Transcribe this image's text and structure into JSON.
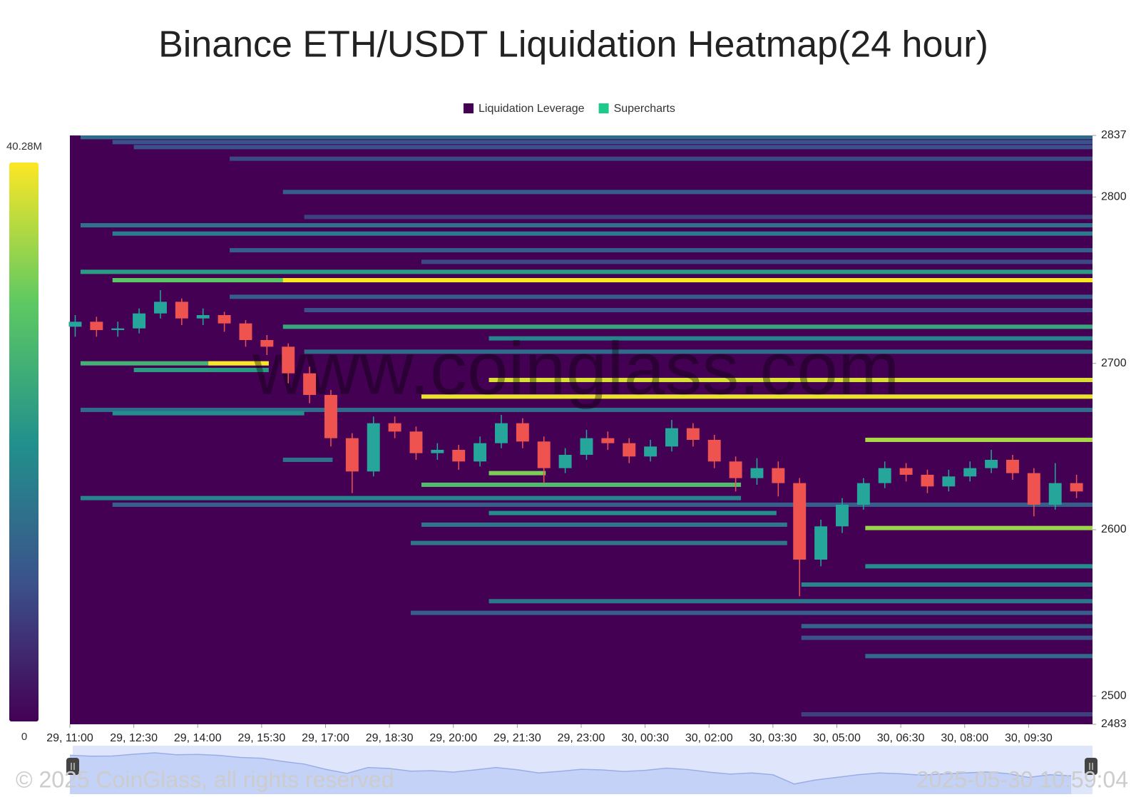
{
  "chart_data": {
    "type": "heatmap",
    "title": "Binance ETH/USDT Liquidation Heatmap(24 hour)",
    "legend": [
      {
        "name": "Liquidation Leverage",
        "color": "#440154"
      },
      {
        "name": "Supercharts",
        "color": "#1ec98c"
      }
    ],
    "watermark": "www.coinglass.com",
    "copyright": "© 2025 CoinGlass, all rights reserved",
    "timestamp": "2025-05-30 10:59:04",
    "colormap": "viridis",
    "colorbar": {
      "min": 0,
      "max": {
        "value": 40280000,
        "label": "40.28M"
      }
    },
    "ylim": [
      2483,
      2837
    ],
    "yticks": [
      2483,
      2500,
      2600,
      2700,
      2800,
      2837
    ],
    "xlim": [
      "29, 11:00",
      "30, 11:00"
    ],
    "xticks": [
      "29, 11:00",
      "29, 12:30",
      "29, 14:00",
      "29, 15:30",
      "29, 17:00",
      "29, 18:30",
      "29, 20:00",
      "29, 21:30",
      "29, 23:00",
      "30, 00:30",
      "30, 02:00",
      "30, 03:30",
      "30, 05:00",
      "30, 06:30",
      "30, 08:00",
      "30, 09:30"
    ],
    "bands": [
      {
        "price": 2836,
        "start": "29, 11:15",
        "end": "30, 11:00",
        "value": 14000000
      },
      {
        "price": 2833,
        "start": "29, 12:00",
        "end": "30, 11:00",
        "value": 10000000
      },
      {
        "price": 2830,
        "start": "29, 12:30",
        "end": "30, 11:00",
        "value": 10000000
      },
      {
        "price": 2823,
        "start": "29, 14:45",
        "end": "30, 11:00",
        "value": 9000000
      },
      {
        "price": 2803,
        "start": "29, 16:00",
        "end": "30, 11:00",
        "value": 12000000
      },
      {
        "price": 2788,
        "start": "29, 16:30",
        "end": "30, 11:00",
        "value": 8000000
      },
      {
        "price": 2783,
        "start": "29, 11:15",
        "end": "30, 11:00",
        "value": 15000000
      },
      {
        "price": 2778,
        "start": "29, 12:00",
        "end": "30, 11:00",
        "value": 17000000
      },
      {
        "price": 2768,
        "start": "29, 14:45",
        "end": "30, 11:00",
        "value": 12000000
      },
      {
        "price": 2761,
        "start": "29, 19:15",
        "end": "30, 11:00",
        "value": 9000000
      },
      {
        "price": 2755,
        "start": "29, 11:15",
        "end": "30, 11:00",
        "value": 22000000
      },
      {
        "price": 2750,
        "start": "29, 12:00",
        "end": "30, 11:00",
        "value": 30000000
      },
      {
        "price": 2750,
        "start": "29, 16:00",
        "end": "30, 11:00",
        "value": 40000000
      },
      {
        "price": 2740,
        "start": "29, 14:45",
        "end": "30, 11:00",
        "value": 12000000
      },
      {
        "price": 2732,
        "start": "29, 16:30",
        "end": "30, 11:00",
        "value": 10000000
      },
      {
        "price": 2722,
        "start": "29, 16:00",
        "end": "30, 11:00",
        "value": 24000000
      },
      {
        "price": 2715,
        "start": "29, 20:50",
        "end": "30, 11:00",
        "value": 18000000
      },
      {
        "price": 2707,
        "start": "29, 16:30",
        "end": "30, 11:00",
        "value": 14000000
      },
      {
        "price": 2700,
        "start": "29, 11:15",
        "end": "29, 15:40",
        "value": 26000000
      },
      {
        "price": 2700,
        "start": "29, 14:15",
        "end": "29, 15:40",
        "value": 40000000
      },
      {
        "price": 2696,
        "start": "29, 12:30",
        "end": "29, 15:40",
        "value": 22000000
      },
      {
        "price": 2690,
        "start": "29, 20:50",
        "end": "30, 11:00",
        "value": 38000000
      },
      {
        "price": 2680,
        "start": "29, 19:15",
        "end": "30, 11:00",
        "value": 39000000
      },
      {
        "price": 2672,
        "start": "29, 11:15",
        "end": "30, 11:00",
        "value": 14000000
      },
      {
        "price": 2670,
        "start": "29, 12:00",
        "end": "29, 16:30",
        "value": 20000000
      },
      {
        "price": 2654,
        "start": "30, 05:40",
        "end": "30, 11:00",
        "value": 35000000
      },
      {
        "price": 2642,
        "start": "29, 16:00",
        "end": "29, 17:10",
        "value": 15000000
      },
      {
        "price": 2634,
        "start": "29, 20:50",
        "end": "29, 22:10",
        "value": 32000000
      },
      {
        "price": 2627,
        "start": "29, 19:15",
        "end": "30, 02:45",
        "value": 28000000
      },
      {
        "price": 2619,
        "start": "29, 11:15",
        "end": "30, 02:45",
        "value": 18000000
      },
      {
        "price": 2615,
        "start": "29, 12:00",
        "end": "30, 11:00",
        "value": 12000000
      },
      {
        "price": 2610,
        "start": "29, 20:50",
        "end": "30, 03:35",
        "value": 20000000
      },
      {
        "price": 2603,
        "start": "29, 19:15",
        "end": "30, 03:50",
        "value": 16000000
      },
      {
        "price": 2601,
        "start": "30, 05:40",
        "end": "30, 11:00",
        "value": 34000000
      },
      {
        "price": 2592,
        "start": "29, 19:00",
        "end": "30, 03:50",
        "value": 16000000
      },
      {
        "price": 2578,
        "start": "30, 05:40",
        "end": "30, 11:00",
        "value": 20000000
      },
      {
        "price": 2567,
        "start": "30, 04:10",
        "end": "30, 11:00",
        "value": 18000000
      },
      {
        "price": 2557,
        "start": "29, 20:50",
        "end": "30, 11:00",
        "value": 16000000
      },
      {
        "price": 2550,
        "start": "29, 19:00",
        "end": "30, 11:00",
        "value": 12000000
      },
      {
        "price": 2542,
        "start": "30, 04:10",
        "end": "30, 11:00",
        "value": 13000000
      },
      {
        "price": 2535,
        "start": "30, 04:10",
        "end": "30, 11:00",
        "value": 10000000
      },
      {
        "price": 2524,
        "start": "30, 05:40",
        "end": "30, 11:00",
        "value": 14000000
      },
      {
        "price": 2489,
        "start": "30, 04:10",
        "end": "30, 11:00",
        "value": 8000000
      }
    ],
    "candles": {
      "up_color": "#26a69a",
      "down_color": "#ef5350",
      "x": [
        "29, 11:00",
        "29, 11:30",
        "29, 12:00",
        "29, 12:30",
        "29, 13:00",
        "29, 13:30",
        "29, 14:00",
        "29, 14:30",
        "29, 15:00",
        "29, 15:30",
        "29, 16:00",
        "29, 16:30",
        "29, 17:00",
        "29, 17:30",
        "29, 18:00",
        "29, 18:30",
        "29, 19:00",
        "29, 19:30",
        "29, 20:00",
        "29, 20:30",
        "29, 21:00",
        "29, 21:30",
        "29, 22:00",
        "29, 22:30",
        "29, 23:00",
        "29, 23:30",
        "30, 00:00",
        "30, 00:30",
        "30, 01:00",
        "30, 01:30",
        "30, 02:00",
        "30, 02:30",
        "30, 03:00",
        "30, 03:30",
        "30, 04:00",
        "30, 04:30",
        "30, 05:00",
        "30, 05:30",
        "30, 06:00",
        "30, 06:30",
        "30, 07:00",
        "30, 07:30",
        "30, 08:00",
        "30, 08:30",
        "30, 09:00",
        "30, 09:30",
        "30, 10:00",
        "30, 10:30"
      ],
      "open": [
        2722,
        2725,
        2720,
        2721,
        2730,
        2737,
        2727,
        2729,
        2724,
        2714,
        2710,
        2694,
        2681,
        2655,
        2635,
        2664,
        2659,
        2646,
        2648,
        2641,
        2652,
        2664,
        2653,
        2637,
        2645,
        2655,
        2652,
        2644,
        2650,
        2661,
        2654,
        2641,
        2631,
        2637,
        2628,
        2582,
        2602,
        2615,
        2628,
        2637,
        2633,
        2626,
        2632,
        2637,
        2642,
        2634,
        2615,
        2628
      ],
      "high": [
        2729,
        2728,
        2725,
        2733,
        2744,
        2739,
        2733,
        2731,
        2726,
        2717,
        2712,
        2698,
        2684,
        2658,
        2668,
        2668,
        2662,
        2652,
        2651,
        2656,
        2669,
        2667,
        2656,
        2649,
        2660,
        2659,
        2655,
        2654,
        2666,
        2664,
        2657,
        2644,
        2643,
        2641,
        2631,
        2606,
        2619,
        2631,
        2641,
        2640,
        2636,
        2636,
        2641,
        2648,
        2645,
        2637,
        2640,
        2633
      ],
      "low": [
        2716,
        2716,
        2716,
        2718,
        2727,
        2723,
        2723,
        2719,
        2710,
        2705,
        2688,
        2676,
        2650,
        2622,
        2632,
        2655,
        2642,
        2642,
        2636,
        2638,
        2649,
        2649,
        2628,
        2634,
        2642,
        2648,
        2640,
        2641,
        2647,
        2650,
        2637,
        2623,
        2627,
        2620,
        2560,
        2578,
        2598,
        2612,
        2625,
        2629,
        2622,
        2623,
        2629,
        2634,
        2630,
        2608,
        2612,
        2619
      ],
      "close": [
        2725,
        2720,
        2721,
        2730,
        2737,
        2727,
        2729,
        2724,
        2714,
        2710,
        2694,
        2681,
        2655,
        2635,
        2664,
        2659,
        2646,
        2648,
        2641,
        2652,
        2664,
        2653,
        2637,
        2645,
        2655,
        2652,
        2644,
        2650,
        2661,
        2654,
        2641,
        2631,
        2637,
        2628,
        2582,
        2602,
        2615,
        2628,
        2637,
        2633,
        2626,
        2632,
        2637,
        2642,
        2634,
        2615,
        2628,
        2623
      ]
    }
  }
}
